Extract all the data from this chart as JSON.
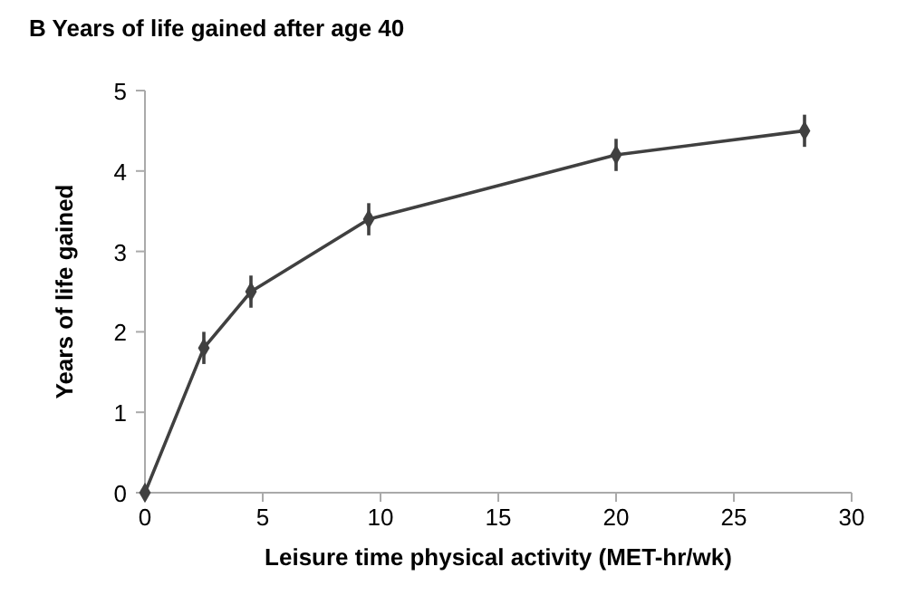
{
  "chart_data": {
    "type": "line",
    "title": "B   Years of life gained after age 40",
    "xlabel": "Leisure time physical activity (MET-hr/wk)",
    "ylabel": "Years of life gained",
    "x": [
      0,
      2.5,
      4.5,
      9.5,
      20,
      28
    ],
    "series": [
      {
        "color": "#404040",
        "values": [
          0,
          1.8,
          2.5,
          3.4,
          4.2,
          4.5
        ],
        "errors": [
          null,
          0.2,
          0.2,
          0.2,
          0.2,
          0.2
        ]
      }
    ],
    "xlim": [
      0,
      30
    ],
    "xticks": [
      0,
      5,
      10,
      15,
      20,
      25,
      30
    ],
    "ylim": [
      0,
      5
    ],
    "yticks": [
      0,
      1,
      2,
      3,
      4,
      5
    ],
    "marker": "diamond",
    "line_style": "solid"
  }
}
